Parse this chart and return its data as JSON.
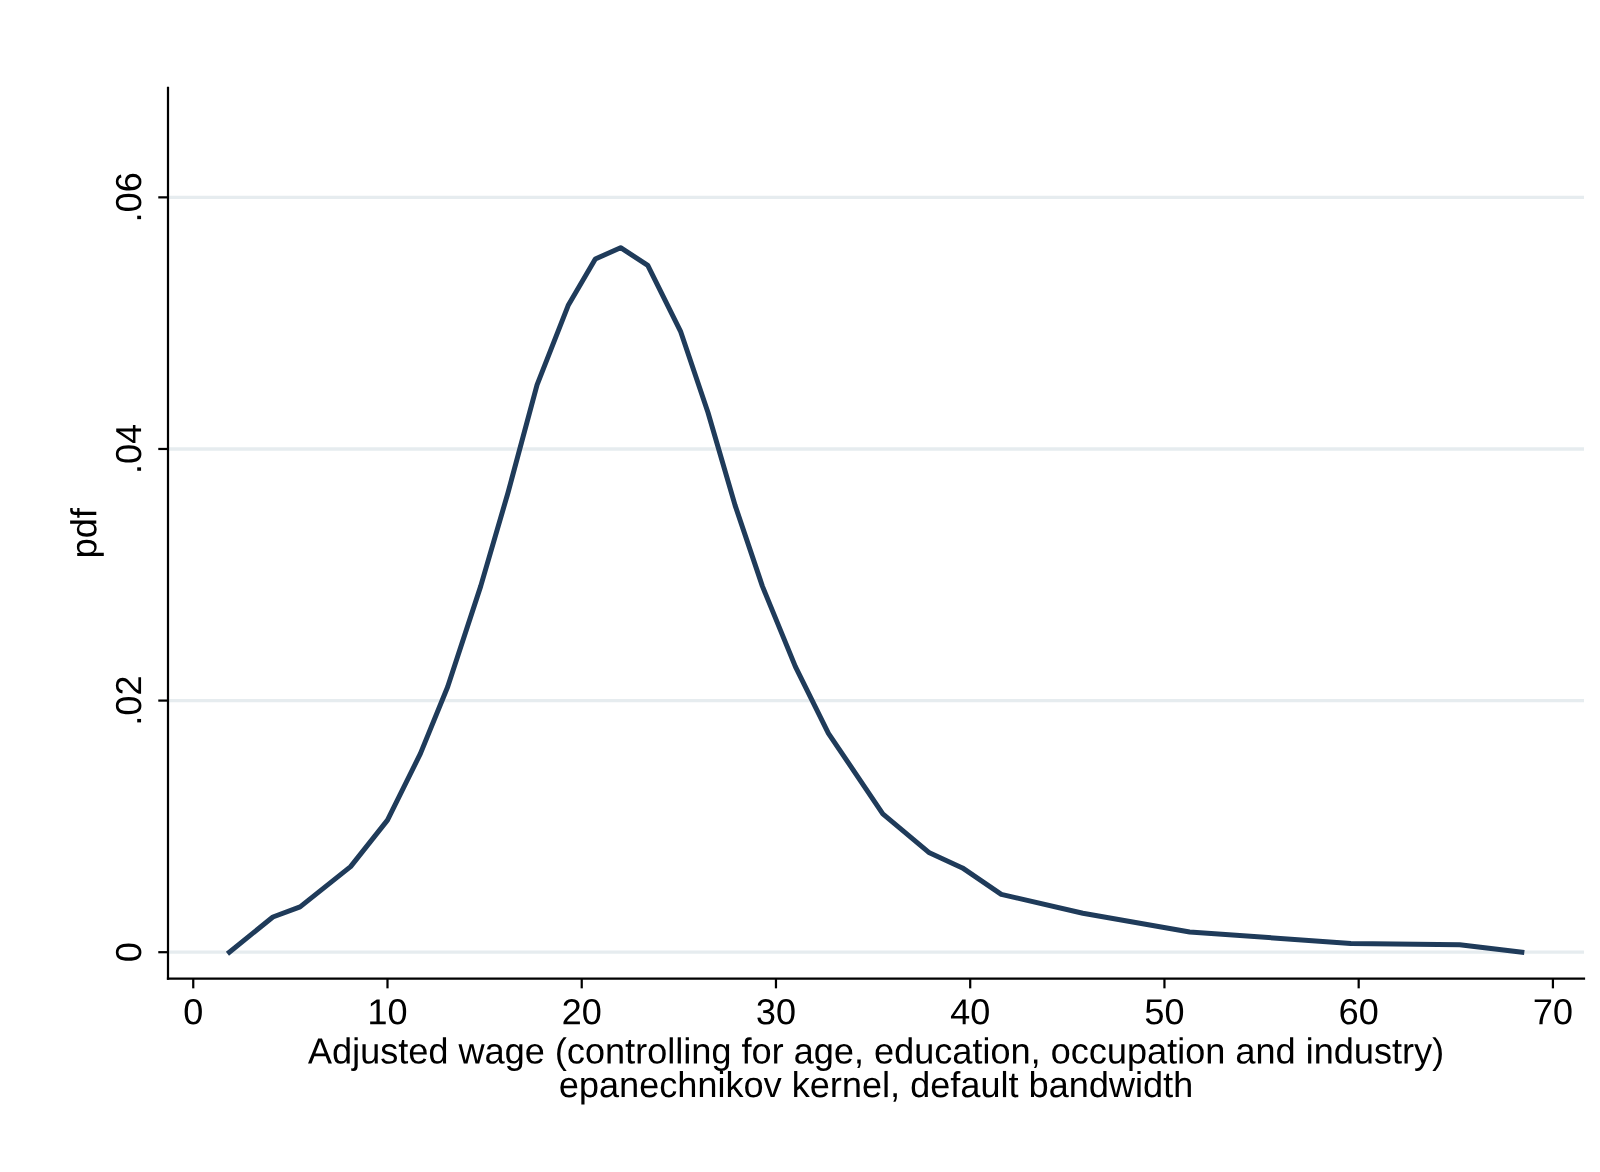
{
  "chart_data": {
    "type": "line",
    "xlabel": "Adjusted wage (controlling for age, education, occupation and industry)\nepanechnikov kernel, default bandwidth",
    "ylabel": "pdf",
    "series": [
      {
        "color": "#1f3b5a",
        "x": [
          1.86,
          4.1,
          5.5,
          8.1,
          10.0,
          11.7,
          13.1,
          14.8,
          16.2,
          17.7,
          19.3,
          20.7,
          22.0,
          23.4,
          25.1,
          26.5,
          27.9,
          29.3,
          31.0,
          32.7,
          35.5,
          37.9,
          39.6,
          41.6,
          45.8,
          51.3,
          59.6,
          65.2,
          68.4
        ],
        "values": [
          0,
          0.0028,
          0.0036,
          0.0068,
          0.0105,
          0.0158,
          0.0211,
          0.0291,
          0.0365,
          0.0451,
          0.0514,
          0.0551,
          0.056,
          0.0546,
          0.0493,
          0.0429,
          0.0355,
          0.0291,
          0.0227,
          0.0174,
          0.011,
          0.0079,
          0.0067,
          0.0046,
          0.0031,
          0.0016,
          0.0007,
          0.0006,
          0
        ]
      }
    ],
    "xlim": [
      -1.3,
      71.6
    ],
    "xticks": [
      0,
      10,
      20,
      30,
      40,
      50,
      60,
      70
    ],
    "ylim": [
      -0.0021,
      0.0687
    ],
    "yticks": [
      {
        "value": 0,
        "label": "0"
      },
      {
        "value": 0.02,
        "label": ".02"
      },
      {
        "value": 0.04,
        "label": ".04"
      },
      {
        "value": 0.06,
        "label": ".06"
      }
    ],
    "grid": "y",
    "marker": "none",
    "line_style": "solid"
  }
}
